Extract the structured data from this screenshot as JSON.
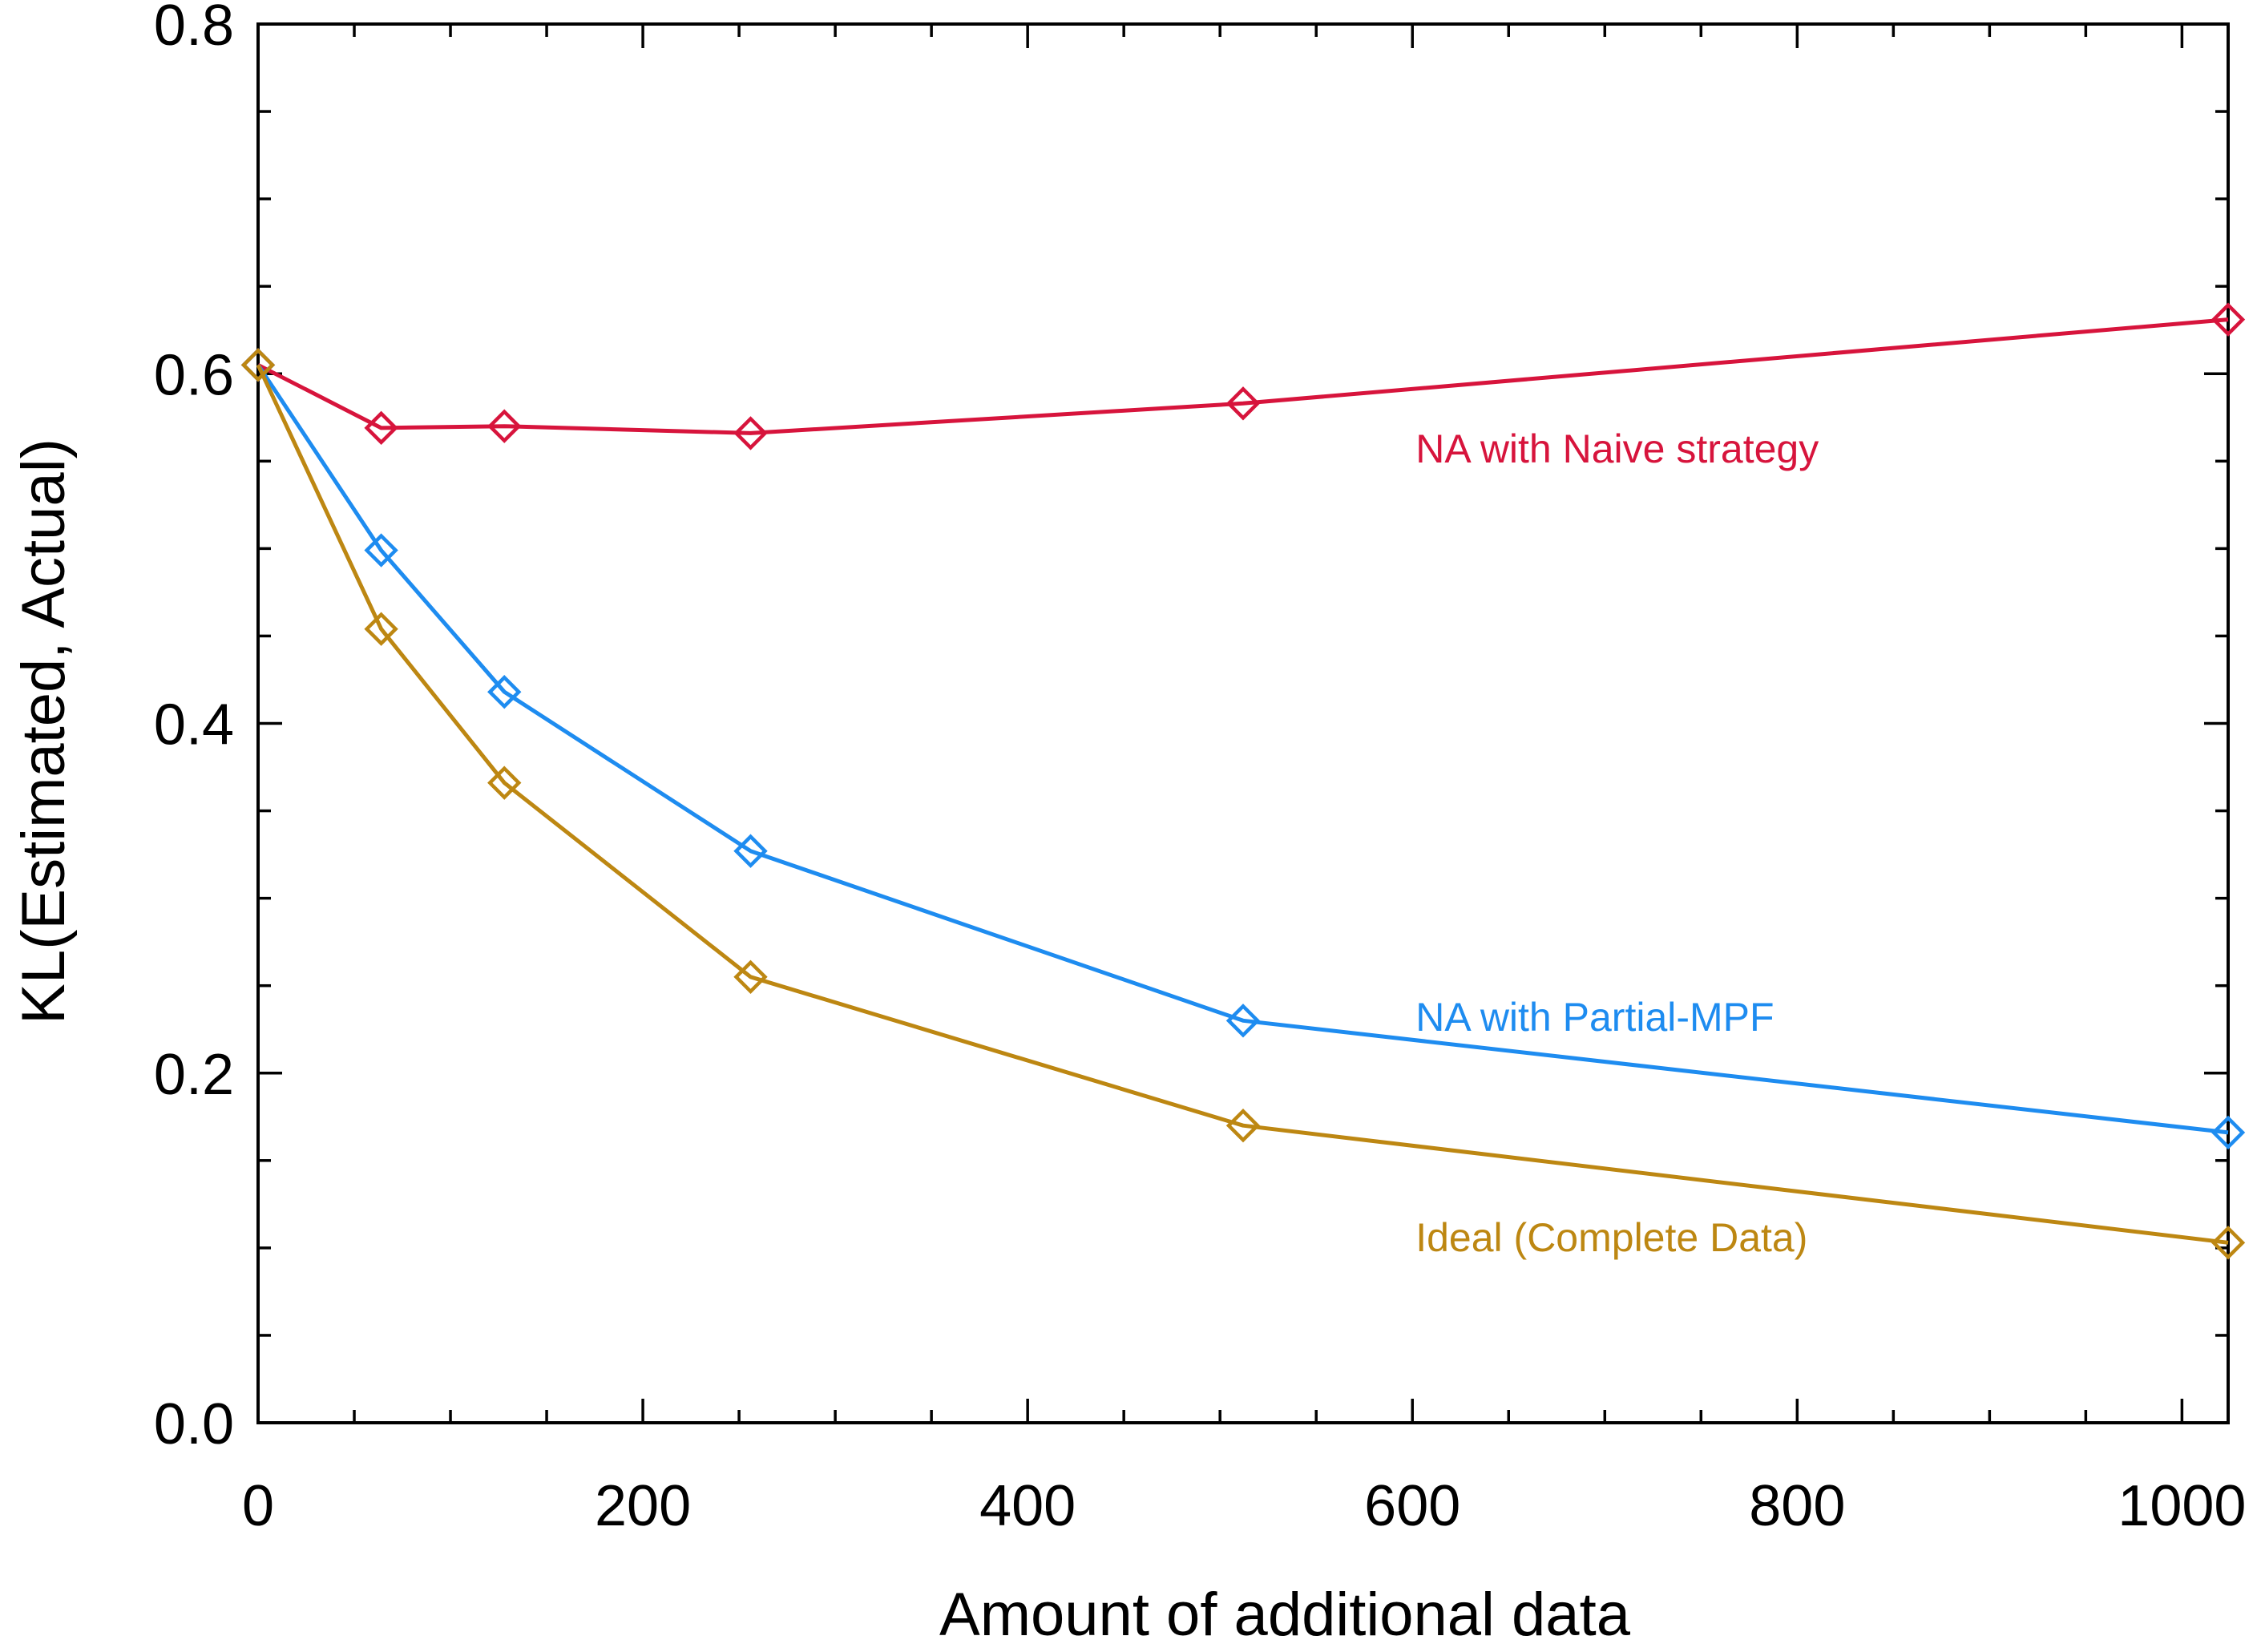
{
  "chart_data": {
    "type": "line",
    "title": "",
    "xlabel": "Amount of additional data",
    "ylabel": "KL(Estimated, Actual)",
    "xlim": [
      0,
      1024
    ],
    "ylim": [
      0.0,
      0.8
    ],
    "x_ticks": [
      0,
      200,
      400,
      600,
      800,
      1000
    ],
    "x_tick_labels": [
      "0",
      "200",
      "400",
      "600",
      "800",
      "1000"
    ],
    "x_minor_step": 50,
    "y_ticks": [
      0.0,
      0.2,
      0.4,
      0.6,
      0.8
    ],
    "y_tick_labels": [
      "0.0",
      "0.2",
      "0.4",
      "0.6",
      "0.8"
    ],
    "y_minor_step": 0.05,
    "grid": false,
    "marker": "diamond",
    "x": [
      0,
      64,
      128,
      256,
      512,
      1024
    ],
    "series": [
      {
        "name": "NA with Naive strategy",
        "color": "#d7143c",
        "values": [
          0.605,
          0.569,
          0.57,
          0.566,
          0.583,
          0.631
        ],
        "label_at": [
          600,
          0.557
        ]
      },
      {
        "name": "NA with Partial-MPF",
        "color": "#1e8cf0",
        "values": [
          0.605,
          0.499,
          0.418,
          0.327,
          0.23,
          0.166
        ],
        "label_at": [
          600,
          0.232
        ]
      },
      {
        "name": "Ideal (Complete Data)",
        "color": "#bd8712",
        "values": [
          0.605,
          0.454,
          0.366,
          0.255,
          0.17,
          0.103
        ],
        "label_at": [
          600,
          0.106
        ]
      }
    ]
  }
}
